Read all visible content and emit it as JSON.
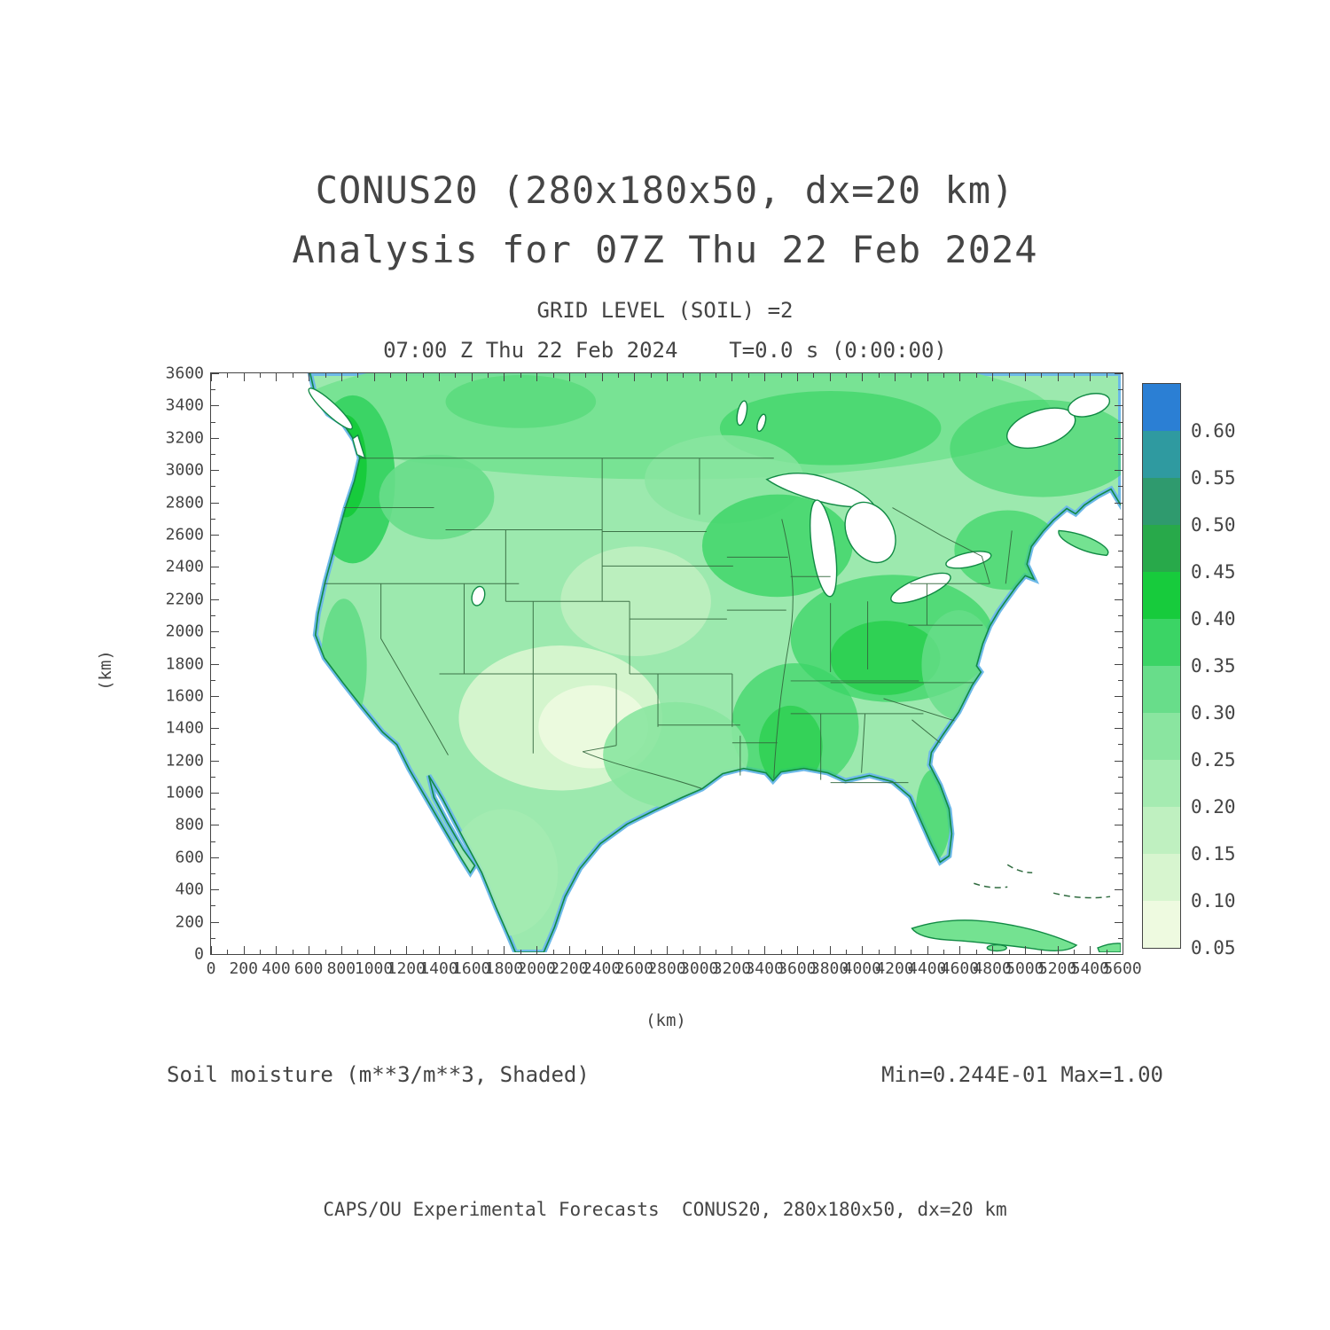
{
  "header": {
    "title_line1": "CONUS20 (280x180x50, dx=20 km)",
    "title_line2": "Analysis for 07Z Thu 22 Feb 2024",
    "grid_level": "GRID LEVEL (SOIL) =2",
    "time_line": "07:00 Z Thu 22 Feb 2024    T=0.0 s (0:00:00)"
  },
  "footer": {
    "field_label": "Soil moisture (m**3/m**3, Shaded)",
    "minmax": "Min=0.244E-01 Max=1.00",
    "credit": "CAPS/OU Experimental Forecasts  CONUS20, 280x180x50, dx=20 km"
  },
  "chart_data": {
    "type": "heatmap",
    "title": "CONUS20 soil moisture analysis, grid level (soil) = 2",
    "variable": "Soil moisture",
    "units": "m**3/m**3",
    "style": "Shaded",
    "valid_time": "07:00 Z Thu 22 Feb 2024",
    "forecast_time": "T=0.0 s (0:00:00)",
    "xlabel": "(km)",
    "ylabel": "(km)",
    "x_range_km": [
      0,
      5600
    ],
    "y_range_km": [
      0,
      3600
    ],
    "x_tick_step_km": 200,
    "y_tick_step_km": 200,
    "minor_tick_step_km": 100,
    "x_ticks_km": [
      0,
      200,
      400,
      600,
      800,
      1000,
      1200,
      1400,
      1600,
      1800,
      2000,
      2200,
      2400,
      2600,
      2800,
      3000,
      3200,
      3400,
      3600,
      3800,
      4000,
      4200,
      4400,
      4600,
      4800,
      5000,
      5200,
      5400,
      5600
    ],
    "y_ticks_km": [
      0,
      200,
      400,
      600,
      800,
      1000,
      1200,
      1400,
      1600,
      1800,
      2000,
      2200,
      2400,
      2600,
      2800,
      3000,
      3200,
      3400,
      3600
    ],
    "data_min": "0.244E-01",
    "data_max": "1.00",
    "region": "Continental United States with parts of Canada, Mexico and Cuba",
    "colorbar": {
      "position": "right",
      "levels_bottom_to_top": [
        0.05,
        0.1,
        0.15,
        0.2,
        0.25,
        0.3,
        0.35,
        0.4,
        0.45,
        0.5,
        0.55,
        0.6
      ],
      "colors_bottom_to_top": [
        "#eefae0",
        "#d7f5cf",
        "#bff0c0",
        "#a5ebb1",
        "#8ae5a0",
        "#68dd8a",
        "#3bd465",
        "#17cb3c",
        "#28a94a",
        "#2f9a6e",
        "#2f9aa0",
        "#2b7fd4"
      ]
    },
    "shading_summary": "Higher soil moisture (dark green) along Pacific Northwest coast, upper Midwest, Ohio/Mississippi valleys and Northeast; lower values (pale green) over the Southwest and High Plains"
  }
}
